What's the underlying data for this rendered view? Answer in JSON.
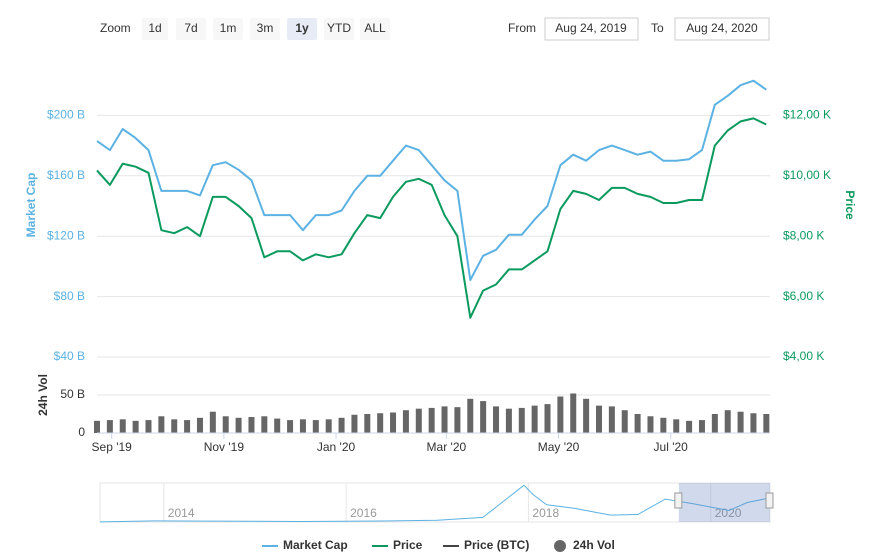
{
  "toolbar": {
    "zoom_label": "Zoom",
    "ranges": [
      "1d",
      "7d",
      "1m",
      "3m",
      "1y",
      "YTD",
      "ALL"
    ],
    "selected": 4,
    "from_label": "From",
    "from": "Aug 24, 2019",
    "to_label": "To",
    "to": "Aug 24, 2020"
  },
  "chart_data": [
    {
      "type": "line",
      "x": [
        "2019-08-24",
        "2019-08-31",
        "2019-09-07",
        "2019-09-14",
        "2019-09-21",
        "2019-09-28",
        "2019-10-05",
        "2019-10-12",
        "2019-10-19",
        "2019-10-26",
        "2019-11-02",
        "2019-11-09",
        "2019-11-16",
        "2019-11-23",
        "2019-11-30",
        "2019-12-07",
        "2019-12-14",
        "2019-12-21",
        "2019-12-28",
        "2020-01-04",
        "2020-01-11",
        "2020-01-18",
        "2020-01-25",
        "2020-02-01",
        "2020-02-08",
        "2020-02-15",
        "2020-02-22",
        "2020-02-29",
        "2020-03-07",
        "2020-03-14",
        "2020-03-21",
        "2020-03-28",
        "2020-04-04",
        "2020-04-11",
        "2020-04-18",
        "2020-04-25",
        "2020-05-02",
        "2020-05-09",
        "2020-05-16",
        "2020-05-23",
        "2020-05-30",
        "2020-06-06",
        "2020-06-13",
        "2020-06-20",
        "2020-06-27",
        "2020-07-04",
        "2020-07-11",
        "2020-07-18",
        "2020-07-25",
        "2020-08-01",
        "2020-08-08",
        "2020-08-15",
        "2020-08-22"
      ],
      "xlim": [
        "2019-08-24",
        "2020-08-24"
      ],
      "xticks": [
        {
          "value": "2019-09-01",
          "label": "Sep '19"
        },
        {
          "value": "2019-11-01",
          "label": "Nov '19"
        },
        {
          "value": "2020-01-01",
          "label": "Jan '20"
        },
        {
          "value": "2020-03-01",
          "label": "Mar '20"
        },
        {
          "value": "2020-05-01",
          "label": "May '20"
        },
        {
          "value": "2020-07-01",
          "label": "Jul '20"
        }
      ],
      "ylabel": "Market Cap",
      "y2label": "Price",
      "ylim": [
        40,
        240
      ],
      "yticks": [
        {
          "value": 40,
          "label": "$40 B"
        },
        {
          "value": 80,
          "label": "$80 B"
        },
        {
          "value": 120,
          "label": "$120 B"
        },
        {
          "value": 160,
          "label": "$160 B"
        },
        {
          "value": 200,
          "label": "$200 B"
        }
      ],
      "y2lim": [
        4000,
        14000
      ],
      "y2ticks": [
        {
          "value": 4000,
          "label": "$4,00 K"
        },
        {
          "value": 6000,
          "label": "$6,00 K"
        },
        {
          "value": 8000,
          "label": "$8,00 K"
        },
        {
          "value": 10000,
          "label": "$10,00 K"
        },
        {
          "value": 12000,
          "label": "$12,00 K"
        }
      ],
      "grid": true,
      "series": [
        {
          "name": "Market Cap",
          "color": "#5cb2e3",
          "axis": "y",
          "values": [
            183,
            177,
            191,
            185,
            177,
            150,
            150,
            150,
            147,
            167,
            169,
            164,
            157,
            134,
            134,
            134,
            124,
            134,
            134,
            137,
            150,
            160,
            160,
            170,
            180,
            177,
            167,
            157,
            150,
            91,
            107,
            111,
            121,
            121,
            131,
            140,
            167,
            174,
            170,
            177,
            180,
            177,
            174,
            176,
            170,
            170,
            171,
            177,
            207,
            213,
            220,
            223,
            217
          ]
        },
        {
          "name": "Price",
          "color": "#0b9a5e",
          "axis": "y2",
          "values": [
            10180,
            9700,
            10400,
            10300,
            10100,
            8200,
            8100,
            8300,
            8000,
            9300,
            9300,
            9000,
            8600,
            7300,
            7500,
            7500,
            7200,
            7400,
            7300,
            7400,
            8100,
            8700,
            8600,
            9300,
            9800,
            9900,
            9700,
            8700,
            8000,
            5300,
            6200,
            6400,
            6900,
            6900,
            7200,
            7500,
            8900,
            9500,
            9400,
            9200,
            9600,
            9600,
            9400,
            9300,
            9100,
            9100,
            9200,
            9200,
            11000,
            11500,
            11800,
            11900,
            11700
          ]
        },
        {
          "name": "Price (BTC)",
          "color": "#444444",
          "visible": false
        }
      ]
    },
    {
      "type": "bar",
      "ylabel": "24h Vol",
      "ylim": [
        0,
        100
      ],
      "yticks": [
        0,
        {
          "value": 50,
          "label": "50 B"
        }
      ],
      "series": [
        {
          "name": "24h Vol",
          "color": "#666666",
          "values": [
            16,
            17,
            18,
            16,
            17,
            22,
            18,
            17,
            20,
            28,
            22,
            20,
            21,
            22,
            19,
            17,
            18,
            17,
            18,
            20,
            24,
            25,
            26,
            27,
            30,
            32,
            33,
            35,
            34,
            45,
            42,
            35,
            32,
            33,
            36,
            38,
            48,
            52,
            45,
            36,
            35,
            30,
            25,
            22,
            20,
            18,
            16,
            17,
            25,
            30,
            28,
            26,
            25
          ]
        }
      ]
    },
    {
      "type": "navigator",
      "color": "#5cb2e3",
      "x": [
        2013.3,
        2013.9,
        2014.5,
        2015.5,
        2016.5,
        2017.0,
        2017.5,
        2017.95,
        2018.05,
        2018.2,
        2018.5,
        2018.9,
        2019.2,
        2019.5,
        2019.8,
        2020.2,
        2020.4,
        2020.65
      ],
      "values": [
        1,
        10,
        8,
        4,
        10,
        16,
        40,
        320,
        240,
        150,
        120,
        60,
        65,
        200,
        160,
        100,
        170,
        210
      ],
      "xlim": [
        2013.3,
        2020.65
      ],
      "xticks": [
        2014,
        2016,
        2018,
        2020
      ],
      "ylim": [
        0,
        340
      ],
      "selection": [
        2019.65,
        2020.65
      ]
    }
  ]
}
